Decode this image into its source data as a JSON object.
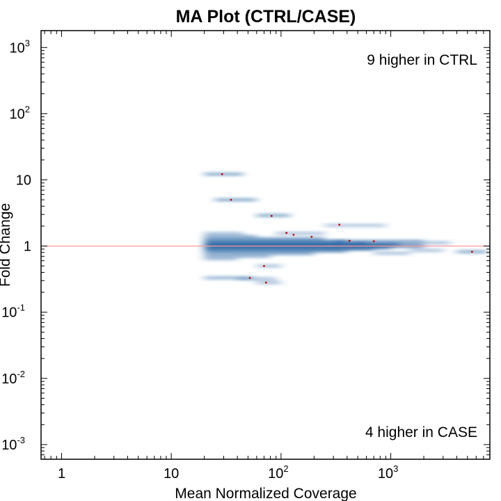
{
  "chart_data": {
    "type": "scatter",
    "title": "MA Plot (CTRL/CASE)",
    "xlabel": "Mean Normalized Coverage",
    "ylabel": "Fold Change",
    "x_scale": "log",
    "y_scale": "log",
    "xlim": [
      0.65,
      8000
    ],
    "ylim": [
      0.0006,
      1800
    ],
    "x_ticks": [
      {
        "value": 1,
        "base": "1",
        "exp": ""
      },
      {
        "value": 10,
        "base": "10",
        "exp": ""
      },
      {
        "value": 100,
        "base": "10",
        "exp": "2"
      },
      {
        "value": 1000,
        "base": "10",
        "exp": "3"
      }
    ],
    "y_ticks": [
      {
        "value": 0.001,
        "base": "10",
        "exp": "-3"
      },
      {
        "value": 0.01,
        "base": "10",
        "exp": "-2"
      },
      {
        "value": 0.1,
        "base": "10",
        "exp": "-1"
      },
      {
        "value": 1,
        "base": "1",
        "exp": ""
      },
      {
        "value": 10,
        "base": "10",
        "exp": ""
      },
      {
        "value": 100,
        "base": "10",
        "exp": "2"
      },
      {
        "value": 1000,
        "base": "10",
        "exp": "3"
      }
    ],
    "reference_line": {
      "y": 1,
      "color": "#ff9a9a"
    },
    "annotations": {
      "top": "9 higher in CTRL",
      "bottom": "4 higher in CASE"
    },
    "density_color": "#1f5fa0",
    "highlight_color": "#cc0000",
    "density_bands": [
      {
        "x0": 20,
        "x1": 45,
        "y": 1.55,
        "w": 0.5
      },
      {
        "x0": 20,
        "x1": 60,
        "y": 1.4,
        "w": 0.6
      },
      {
        "x0": 20,
        "x1": 250,
        "y": 1.28,
        "w": 0.8
      },
      {
        "x0": 20,
        "x1": 400,
        "y": 1.18,
        "w": 0.9
      },
      {
        "x0": 20,
        "x1": 600,
        "y": 1.1,
        "w": 1.0
      },
      {
        "x0": 20,
        "x1": 1200,
        "y": 1.05,
        "w": 1.0
      },
      {
        "x0": 20,
        "x1": 2000,
        "y": 1.0,
        "w": 1.0
      },
      {
        "x0": 20,
        "x1": 1000,
        "y": 0.95,
        "w": 1.0
      },
      {
        "x0": 20,
        "x1": 700,
        "y": 0.9,
        "w": 0.9
      },
      {
        "x0": 20,
        "x1": 400,
        "y": 0.84,
        "w": 0.8
      },
      {
        "x0": 20,
        "x1": 200,
        "y": 0.77,
        "w": 0.7
      },
      {
        "x0": 20,
        "x1": 80,
        "y": 0.7,
        "w": 0.6
      },
      {
        "x0": 20,
        "x1": 40,
        "y": 0.64,
        "w": 0.5
      },
      {
        "x0": 250,
        "x1": 900,
        "y": 2.05,
        "w": 0.45
      },
      {
        "x0": 300,
        "x1": 2000,
        "y": 1.18,
        "w": 0.6
      },
      {
        "x0": 500,
        "x1": 3500,
        "y": 1.12,
        "w": 0.5
      },
      {
        "x0": 1500,
        "x1": 3000,
        "y": 0.86,
        "w": 0.5
      },
      {
        "x0": 700,
        "x1": 1500,
        "y": 0.78,
        "w": 0.5
      },
      {
        "x0": 4000,
        "x1": 7500,
        "y": 0.82,
        "w": 0.7
      },
      {
        "x0": 20,
        "x1": 55,
        "y": 0.33,
        "w": 0.6
      },
      {
        "x0": 40,
        "x1": 90,
        "y": 0.32,
        "w": 0.5
      },
      {
        "x0": 60,
        "x1": 100,
        "y": 0.28,
        "w": 0.5
      },
      {
        "x0": 60,
        "x1": 100,
        "y": 0.5,
        "w": 0.5
      },
      {
        "x0": 20,
        "x1": 45,
        "y": 12.2,
        "w": 0.7
      },
      {
        "x0": 25,
        "x1": 60,
        "y": 5.0,
        "w": 0.7
      },
      {
        "x0": 60,
        "x1": 120,
        "y": 2.9,
        "w": 0.7
      },
      {
        "x0": 90,
        "x1": 250,
        "y": 1.55,
        "w": 0.5
      }
    ],
    "points": [
      {
        "x": 29,
        "y": 12.2
      },
      {
        "x": 35,
        "y": 5.0
      },
      {
        "x": 82,
        "y": 2.85
      },
      {
        "x": 340,
        "y": 2.1
      },
      {
        "x": 112,
        "y": 1.58
      },
      {
        "x": 130,
        "y": 1.48
      },
      {
        "x": 190,
        "y": 1.38
      },
      {
        "x": 420,
        "y": 1.2
      },
      {
        "x": 700,
        "y": 1.18
      },
      {
        "x": 5500,
        "y": 0.82
      },
      {
        "x": 70,
        "y": 0.5
      },
      {
        "x": 52,
        "y": 0.33
      },
      {
        "x": 73,
        "y": 0.28
      }
    ]
  }
}
